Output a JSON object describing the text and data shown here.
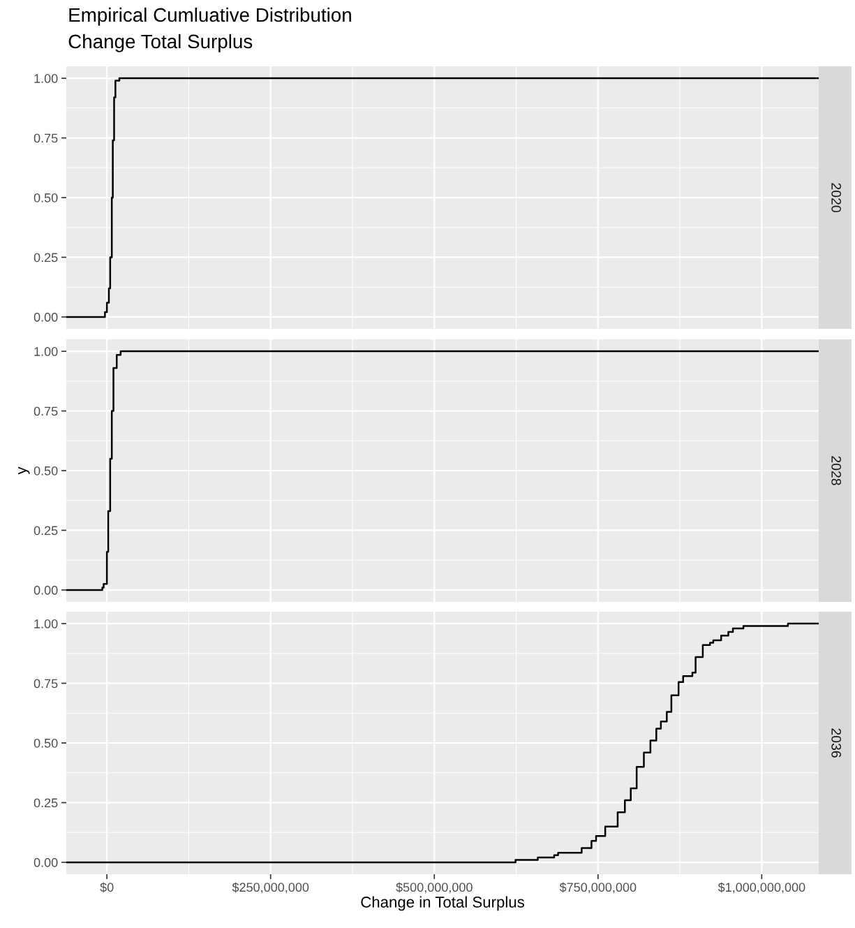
{
  "chart_data": [
    {
      "type": "step",
      "title": "Empirical Cumluative Distribution",
      "subtitle": "Change Total Surplus",
      "annotations": [
        "2020"
      ],
      "tick_labels": "y",
      "grid": true,
      "xlim": [
        -62000000,
        1087000000
      ],
      "ylim": [
        -0.05,
        1.05
      ],
      "xticks": [
        {
          "value": 0,
          "label": null
        },
        {
          "value": 250000000,
          "label": null
        },
        {
          "value": 500000000,
          "label": null
        },
        {
          "value": 750000000,
          "label": null
        },
        {
          "value": 1000000000,
          "label": null
        }
      ],
      "yticks": [
        {
          "value": 0,
          "label": "0.00"
        },
        {
          "value": 0.25,
          "label": "0.25"
        },
        {
          "value": 0.5,
          "label": "0.50"
        },
        {
          "value": 0.75,
          "label": "0.75"
        },
        {
          "value": 1,
          "label": "1.00"
        }
      ],
      "series": [
        {
          "color": "#000000",
          "x": [
            -62000000,
            -3000000,
            0,
            3000000,
            5000000,
            7500000,
            9000000,
            11000000,
            13000000,
            19000000,
            1087000000
          ],
          "values": [
            0,
            0.02,
            0.06,
            0.12,
            0.25,
            0.5,
            0.74,
            0.92,
            0.99,
            1,
            1
          ]
        }
      ]
    },
    {
      "type": "step",
      "ylabel": "y",
      "annotations": [
        "2028"
      ],
      "tick_labels": "y",
      "grid": true,
      "xlim": [
        -62000000,
        1087000000
      ],
      "ylim": [
        -0.05,
        1.05
      ],
      "xticks": [
        {
          "value": 0,
          "label": null
        },
        {
          "value": 250000000,
          "label": null
        },
        {
          "value": 500000000,
          "label": null
        },
        {
          "value": 750000000,
          "label": null
        },
        {
          "value": 1000000000,
          "label": null
        }
      ],
      "yticks": [
        {
          "value": 0,
          "label": "0.00"
        },
        {
          "value": 0.25,
          "label": "0.25"
        },
        {
          "value": 0.5,
          "label": "0.50"
        },
        {
          "value": 0.75,
          "label": "0.75"
        },
        {
          "value": 1,
          "label": "1.00"
        }
      ],
      "series": [
        {
          "color": "#000000",
          "x": [
            -62000000,
            -7000000,
            -5000000,
            0,
            2000000,
            5000000,
            7500000,
            10000000,
            15000000,
            21000000,
            1087000000
          ],
          "values": [
            0,
            0.01,
            0.025,
            0.16,
            0.33,
            0.55,
            0.75,
            0.93,
            0.985,
            1,
            1
          ]
        }
      ]
    },
    {
      "type": "step",
      "xlabel": "Change in Total Surplus",
      "annotations": [
        "2036"
      ],
      "grid": true,
      "xlim": [
        -62000000,
        1087000000
      ],
      "ylim": [
        -0.05,
        1.05
      ],
      "xticks": [
        {
          "value": 0,
          "label": "$0"
        },
        {
          "value": 250000000,
          "label": "$250,000,000"
        },
        {
          "value": 500000000,
          "label": "$500,000,000"
        },
        {
          "value": 750000000,
          "label": "$750,000,000"
        },
        {
          "value": 1000000000,
          "label": "$1,000,000,000"
        }
      ],
      "yticks": [
        {
          "value": 0,
          "label": "0.00"
        },
        {
          "value": 0.25,
          "label": "0.25"
        },
        {
          "value": 0.5,
          "label": "0.50"
        },
        {
          "value": 0.75,
          "label": "0.75"
        },
        {
          "value": 1,
          "label": "1.00"
        }
      ],
      "series": [
        {
          "color": "#000000",
          "x": [
            -62000000,
            624000000,
            658000000,
            683000000,
            689000000,
            725000000,
            740000000,
            747000000,
            761000000,
            780000000,
            791000000,
            800000000,
            809000000,
            820000000,
            830000000,
            839000000,
            846000000,
            855000000,
            862000000,
            873000000,
            880000000,
            894000000,
            899000000,
            910000000,
            921000000,
            926000000,
            938000000,
            949000000,
            956000000,
            972000000,
            1040000000,
            1087000000
          ],
          "values": [
            0,
            0.01,
            0.02,
            0.03,
            0.04,
            0.06,
            0.09,
            0.11,
            0.15,
            0.21,
            0.26,
            0.31,
            0.4,
            0.46,
            0.51,
            0.56,
            0.59,
            0.63,
            0.7,
            0.755,
            0.78,
            0.795,
            0.86,
            0.91,
            0.92,
            0.93,
            0.95,
            0.965,
            0.98,
            0.99,
            1,
            1
          ]
        }
      ]
    }
  ]
}
